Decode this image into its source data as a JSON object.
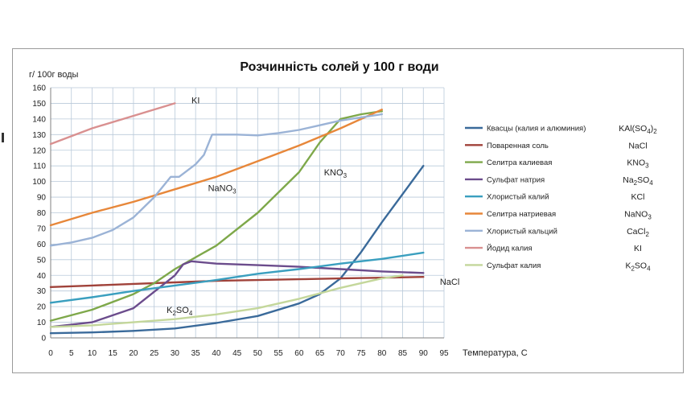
{
  "chart_data": {
    "type": "line",
    "title": "Розчинність солей у 100 г води",
    "ylabel": "г/ 100г воды",
    "xlabel": "Температура, С",
    "xlim": [
      0,
      95
    ],
    "ylim": [
      0,
      160
    ],
    "x_ticks": [
      "0",
      "5",
      "10",
      "15",
      "20",
      "25",
      "30",
      "35",
      "40",
      "45",
      "50",
      "55",
      "60",
      "65",
      "70",
      "75",
      "80",
      "85",
      "90",
      "95"
    ],
    "y_ticks": [
      "0",
      "10",
      "20",
      "30",
      "40",
      "50",
      "60",
      "70",
      "80",
      "90",
      "100",
      "110",
      "120",
      "130",
      "140",
      "150",
      "160"
    ],
    "grid": true,
    "legend_position": "right",
    "series": [
      {
        "name": "Квасцы (калия и алюминия)",
        "formula": "KAl(SO4)2",
        "color": "#3a6a9a",
        "points": [
          [
            0,
            3
          ],
          [
            10,
            3.5
          ],
          [
            20,
            4.5
          ],
          [
            30,
            6
          ],
          [
            40,
            9.5
          ],
          [
            50,
            14
          ],
          [
            60,
            22
          ],
          [
            65,
            28
          ],
          [
            70,
            38
          ],
          [
            75,
            55
          ],
          [
            80,
            74
          ],
          [
            90,
            110
          ]
        ]
      },
      {
        "name": "Поваренная соль",
        "formula": "NaCl",
        "color": "#a0423a",
        "points": [
          [
            0,
            32.5
          ],
          [
            10,
            33.5
          ],
          [
            20,
            34.5
          ],
          [
            30,
            35.5
          ],
          [
            40,
            36.5
          ],
          [
            50,
            37
          ],
          [
            60,
            37.5
          ],
          [
            70,
            38
          ],
          [
            80,
            38.5
          ],
          [
            90,
            39
          ]
        ]
      },
      {
        "name": "Селитра калиевая",
        "formula": "KNO3",
        "color": "#7ea84a",
        "points": [
          [
            0,
            11
          ],
          [
            10,
            18
          ],
          [
            20,
            28
          ],
          [
            25,
            35
          ],
          [
            30,
            44
          ],
          [
            40,
            59
          ],
          [
            50,
            80
          ],
          [
            60,
            106
          ],
          [
            65,
            125
          ],
          [
            70,
            140
          ],
          [
            75,
            143
          ],
          [
            80,
            145
          ]
        ]
      },
      {
        "name": "Сульфат натрия",
        "formula": "Na2SO4",
        "color": "#6b4c8c",
        "points": [
          [
            0,
            7
          ],
          [
            10,
            10
          ],
          [
            20,
            19
          ],
          [
            30,
            40
          ],
          [
            32,
            47
          ],
          [
            34,
            49
          ],
          [
            40,
            47.5
          ],
          [
            50,
            46.5
          ],
          [
            60,
            45.5
          ],
          [
            70,
            44
          ],
          [
            80,
            42.5
          ],
          [
            90,
            41.5
          ]
        ]
      },
      {
        "name": "Хлористый калий",
        "formula": "KCl",
        "color": "#3a9fbf",
        "points": [
          [
            0,
            22.5
          ],
          [
            10,
            26
          ],
          [
            20,
            30
          ],
          [
            30,
            33.5
          ],
          [
            40,
            37
          ],
          [
            50,
            41
          ],
          [
            60,
            44
          ],
          [
            70,
            47.5
          ],
          [
            80,
            50.5
          ],
          [
            90,
            54.5
          ]
        ]
      },
      {
        "name": "Селитра натриевая",
        "formula": "NaNO3",
        "color": "#e7873a",
        "points": [
          [
            0,
            72
          ],
          [
            10,
            80
          ],
          [
            20,
            87
          ],
          [
            30,
            95
          ],
          [
            40,
            103
          ],
          [
            50,
            113
          ],
          [
            60,
            123
          ],
          [
            70,
            134
          ],
          [
            80,
            146
          ]
        ]
      },
      {
        "name": "Хлористый кальций",
        "formula": "CaCl2",
        "color": "#9bb3d6",
        "points": [
          [
            0,
            59
          ],
          [
            5,
            61
          ],
          [
            10,
            64
          ],
          [
            15,
            69
          ],
          [
            20,
            77
          ],
          [
            25,
            90
          ],
          [
            29,
            103
          ],
          [
            31,
            103
          ],
          [
            35,
            111
          ],
          [
            37,
            117
          ],
          [
            39,
            130
          ],
          [
            40,
            130
          ],
          [
            45,
            130
          ],
          [
            50,
            129.5
          ],
          [
            55,
            131
          ],
          [
            60,
            133
          ],
          [
            65,
            136
          ],
          [
            70,
            139
          ],
          [
            75,
            141
          ],
          [
            80,
            143
          ]
        ]
      },
      {
        "name": "Йодид калия",
        "formula": "KI",
        "color": "#d99090",
        "points": [
          [
            0,
            124
          ],
          [
            10,
            134
          ],
          [
            20,
            142
          ],
          [
            30,
            150
          ]
        ]
      },
      {
        "name": "Сульфат калия",
        "formula": "K2SO4",
        "color": "#c4d79b",
        "points": [
          [
            0,
            7
          ],
          [
            10,
            8
          ],
          [
            20,
            10
          ],
          [
            30,
            12
          ],
          [
            40,
            15
          ],
          [
            50,
            19
          ],
          [
            60,
            25
          ],
          [
            70,
            32
          ],
          [
            80,
            38
          ],
          [
            85,
            40
          ]
        ]
      }
    ],
    "curve_labels": [
      {
        "text": "KI",
        "x": 34,
        "y": 150
      },
      {
        "text": "NaNO3",
        "x": 38,
        "y": 94
      },
      {
        "text": "KNO3",
        "x": 66,
        "y": 104
      },
      {
        "text": "K2SO4",
        "x": 28,
        "y": 16
      },
      {
        "text": "NaCl",
        "x": 94,
        "y": 34
      }
    ]
  }
}
